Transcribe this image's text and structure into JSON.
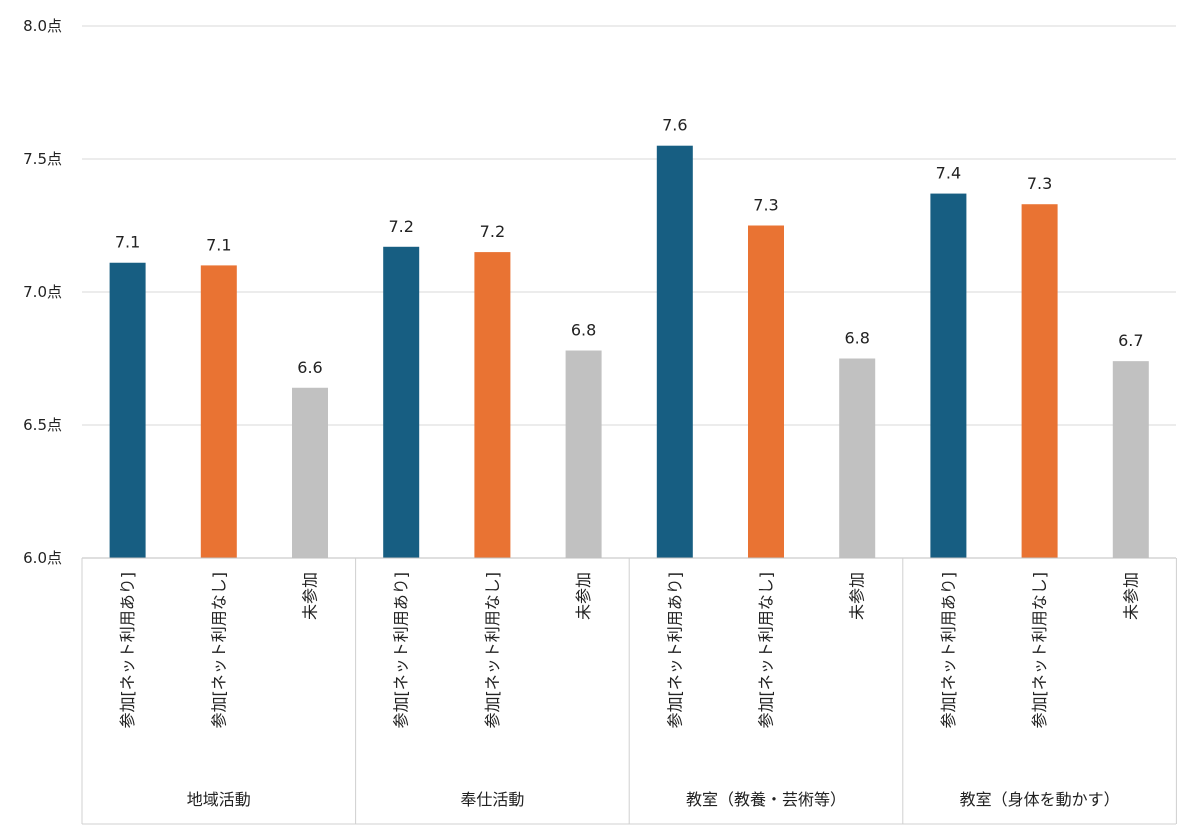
{
  "chart_data": {
    "type": "bar",
    "y_unit": "点",
    "ylim": [
      6.0,
      8.0
    ],
    "yticks": [
      6.0,
      6.5,
      7.0,
      7.5,
      8.0
    ],
    "ytick_labels": [
      "6.0点",
      "6.5点",
      "7.0点",
      "7.5点",
      "8.0点"
    ],
    "grid": true,
    "legend": "none",
    "series_colors": {
      "参加[ネット利用あり]": "#175e82",
      "参加[ネット利用なし]": "#e97333",
      "未参加": "#c1c1c1"
    },
    "groups": [
      {
        "label": "地域活動",
        "bars": [
          {
            "category": "参加[ネット利用あり]",
            "value": 7.11,
            "label": "7.1"
          },
          {
            "category": "参加[ネット利用なし]",
            "value": 7.1,
            "label": "7.1"
          },
          {
            "category": "未参加",
            "value": 6.64,
            "label": "6.6"
          }
        ]
      },
      {
        "label": "奉仕活動",
        "bars": [
          {
            "category": "参加[ネット利用あり]",
            "value": 7.17,
            "label": "7.2"
          },
          {
            "category": "参加[ネット利用なし]",
            "value": 7.15,
            "label": "7.2"
          },
          {
            "category": "未参加",
            "value": 6.78,
            "label": "6.8"
          }
        ]
      },
      {
        "label": "教室（教養・芸術等）",
        "bars": [
          {
            "category": "参加[ネット利用あり]",
            "value": 7.55,
            "label": "7.6"
          },
          {
            "category": "参加[ネット利用なし]",
            "value": 7.25,
            "label": "7.3"
          },
          {
            "category": "未参加",
            "value": 6.75,
            "label": "6.8"
          }
        ]
      },
      {
        "label": "教室（身体を動かす）",
        "bars": [
          {
            "category": "参加[ネット利用あり]",
            "value": 7.37,
            "label": "7.4"
          },
          {
            "category": "参加[ネット利用なし]",
            "value": 7.33,
            "label": "7.3"
          },
          {
            "category": "未参加",
            "value": 6.74,
            "label": "6.7"
          }
        ]
      }
    ]
  }
}
